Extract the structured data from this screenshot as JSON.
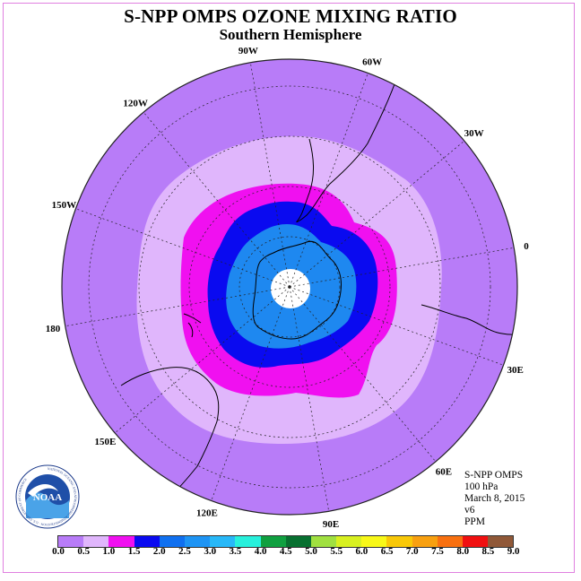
{
  "title": "S-NPP OMPS OZONE MIXING RATIO",
  "subtitle": "Southern Hemisphere",
  "meta": {
    "instrument": "S-NPP OMPS",
    "level": "100 hPa",
    "date": "March 8, 2015",
    "version": "v6",
    "units": "PPM"
  },
  "logo": {
    "name": "NOAA",
    "ring_text": "NATIONAL OCEANIC AND ATMOSPHERIC ADMINISTRATION · U.S. DEPARTMENT OF COMMERCE"
  },
  "longitude_labels": [
    {
      "text": "90W",
      "lon": -90
    },
    {
      "text": "60W",
      "lon": -60
    },
    {
      "text": "30W",
      "lon": -30
    },
    {
      "text": "0",
      "lon": 0
    },
    {
      "text": "30E",
      "lon": 30
    },
    {
      "text": "60E",
      "lon": 60
    },
    {
      "text": "90E",
      "lon": 90
    },
    {
      "text": "120E",
      "lon": 120
    },
    {
      "text": "150E",
      "lon": 150
    },
    {
      "text": "180",
      "lon": 180
    },
    {
      "text": "150W",
      "lon": -150
    },
    {
      "text": "120W",
      "lon": -120
    }
  ],
  "colorbar": {
    "ticks": [
      "0.0",
      "0.5",
      "1.0",
      "1.5",
      "2.0",
      "2.5",
      "3.0",
      "3.5",
      "4.0",
      "4.5",
      "5.0",
      "5.5",
      "6.0",
      "6.5",
      "7.0",
      "7.5",
      "8.0",
      "8.5",
      "9.0"
    ],
    "colors": [
      "#b87cf8",
      "#e0b6fc",
      "#f010f0",
      "#0a0af0",
      "#1070f0",
      "#1e94f4",
      "#28b8f8",
      "#28f0dc",
      "#10a040",
      "#087030",
      "#a0e040",
      "#d8f020",
      "#f8f818",
      "#f8c808",
      "#f8a010",
      "#f87010",
      "#f01010",
      "#905838"
    ]
  },
  "map_colors": {
    "ocean_background": "#b87cf8",
    "ring_light_lavender": "#e0b6fc",
    "ring_magenta": "#f010f0",
    "ring_dark_blue": "#0a0af0",
    "ring_medium_blue": "#1e88f0",
    "polar_missing": "#ffffff"
  }
}
